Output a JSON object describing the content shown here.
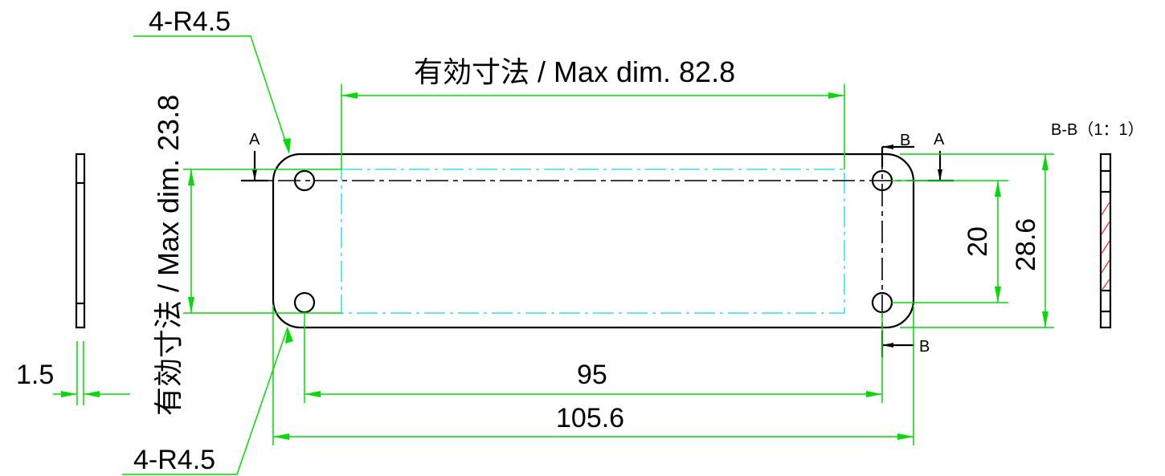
{
  "labels": {
    "radius_top": "4-R4.5",
    "radius_bottom": "4-R4.5",
    "effective_width": "有効寸法 / Max dim. 82.8",
    "effective_height": "有効寸法 / Max dim. 23.8",
    "hole_pitch_x": "95",
    "overall_width": "105.6",
    "hole_pitch_y": "20",
    "overall_height": "28.6",
    "thickness": "1.5",
    "section_title": "B-B（1：1）",
    "section_a_left": "A",
    "section_a_right": "A",
    "section_b_top": "B",
    "section_b_bottom": "B"
  },
  "colors": {
    "object": "#000000",
    "dimension": "#00dd00",
    "effective_area": "#00e0e8",
    "hatch": "#ff2020"
  }
}
